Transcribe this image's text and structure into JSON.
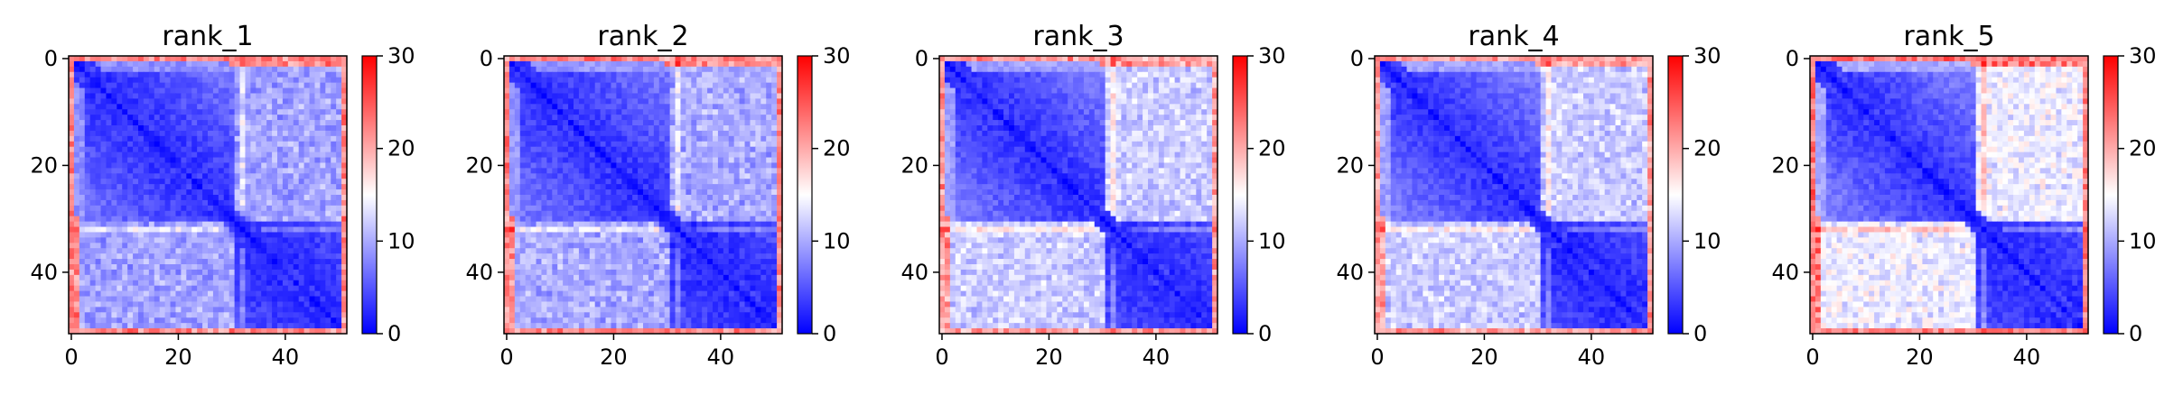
{
  "figure": {
    "background": "#ffffff"
  },
  "colormap": {
    "name": "bwr",
    "low": "#0000ff",
    "mid": "#ffffff",
    "high": "#ff0000"
  },
  "chart_data": [
    {
      "type": "heatmap",
      "title": "rank_1",
      "n": 52,
      "vmin": 0,
      "vmax": 30,
      "xticks": [
        0,
        20,
        40
      ],
      "yticks": [
        0,
        20,
        40
      ],
      "colorbar_ticks": [
        0,
        10,
        20,
        30
      ],
      "off_diagonal_level": 6.5,
      "lower_left_block_level": 9.5,
      "edge_band_level": 22,
      "seed": 11
    },
    {
      "type": "heatmap",
      "title": "rank_2",
      "n": 52,
      "vmin": 0,
      "vmax": 30,
      "xticks": [
        0,
        20,
        40
      ],
      "yticks": [
        0,
        20,
        40
      ],
      "colorbar_ticks": [
        0,
        10,
        20,
        30
      ],
      "off_diagonal_level": 7,
      "lower_left_block_level": 10,
      "edge_band_level": 22,
      "seed": 23
    },
    {
      "type": "heatmap",
      "title": "rank_3",
      "n": 52,
      "vmin": 0,
      "vmax": 30,
      "xticks": [
        0,
        20,
        40
      ],
      "yticks": [
        0,
        20,
        40
      ],
      "colorbar_ticks": [
        0,
        10,
        20,
        30
      ],
      "off_diagonal_level": 7.5,
      "lower_left_block_level": 12,
      "edge_band_level": 21,
      "seed": 37
    },
    {
      "type": "heatmap",
      "title": "rank_4",
      "n": 52,
      "vmin": 0,
      "vmax": 30,
      "xticks": [
        0,
        20,
        40
      ],
      "yticks": [
        0,
        20,
        40
      ],
      "colorbar_ticks": [
        0,
        10,
        20,
        30
      ],
      "off_diagonal_level": 7.5,
      "lower_left_block_level": 12,
      "edge_band_level": 21,
      "seed": 41
    },
    {
      "type": "heatmap",
      "title": "rank_5",
      "n": 52,
      "vmin": 0,
      "vmax": 30,
      "xticks": [
        0,
        20,
        40
      ],
      "yticks": [
        0,
        20,
        40
      ],
      "colorbar_ticks": [
        0,
        10,
        20,
        30
      ],
      "off_diagonal_level": 8,
      "lower_left_block_level": 14,
      "edge_band_level": 23,
      "seed": 53
    }
  ]
}
